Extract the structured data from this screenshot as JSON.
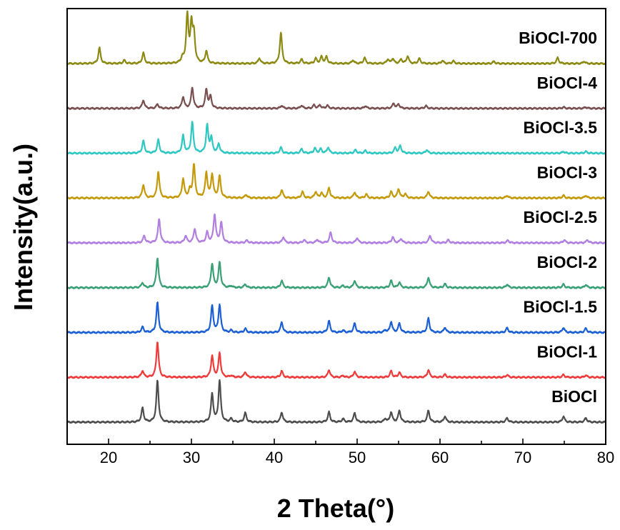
{
  "chart_data": {
    "type": "line",
    "xlabel": "2 Theta(°)",
    "ylabel": "Intensity(a.u.)",
    "xlim": [
      15,
      80
    ],
    "xticks": [
      20,
      30,
      40,
      50,
      60,
      70,
      80
    ],
    "grid": false,
    "legend": "inline labels right of each trace",
    "series": [
      {
        "name": "BiOCl",
        "color": "#4d4d4d",
        "baseline_level": 0,
        "peaks": [
          [
            24.1,
            0.34
          ],
          [
            25.9,
            1.0
          ],
          [
            32.5,
            0.68
          ],
          [
            33.4,
            1.0
          ],
          [
            34.8,
            0.08
          ],
          [
            36.5,
            0.22
          ],
          [
            40.9,
            0.24
          ],
          [
            46.6,
            0.24
          ],
          [
            48.3,
            0.08
          ],
          [
            49.7,
            0.22
          ],
          [
            53.4,
            0.08
          ],
          [
            54.1,
            0.24
          ],
          [
            55.1,
            0.28
          ],
          [
            58.6,
            0.28
          ],
          [
            60.6,
            0.14
          ],
          [
            68.1,
            0.1
          ],
          [
            74.9,
            0.14
          ],
          [
            77.6,
            0.1
          ]
        ]
      },
      {
        "name": "BiOCl-1",
        "color": "#ee3b3b",
        "baseline_level": 1,
        "peaks": [
          [
            24.1,
            0.16
          ],
          [
            25.9,
            0.86
          ],
          [
            32.5,
            0.52
          ],
          [
            33.4,
            0.58
          ],
          [
            34.8,
            0.04
          ],
          [
            36.5,
            0.13
          ],
          [
            40.9,
            0.15
          ],
          [
            46.6,
            0.18
          ],
          [
            48.3,
            0.04
          ],
          [
            49.7,
            0.14
          ],
          [
            54.1,
            0.15
          ],
          [
            55.1,
            0.12
          ],
          [
            58.6,
            0.18
          ],
          [
            60.6,
            0.07
          ],
          [
            68.1,
            0.06
          ],
          [
            74.9,
            0.06
          ],
          [
            77.6,
            0.05
          ]
        ]
      },
      {
        "name": "BiOCl-1.5",
        "color": "#1b5fd4",
        "baseline_level": 2,
        "peaks": [
          [
            24.1,
            0.13
          ],
          [
            25.9,
            0.72
          ],
          [
            32.5,
            0.64
          ],
          [
            33.4,
            0.66
          ],
          [
            34.8,
            0.05
          ],
          [
            36.5,
            0.09
          ],
          [
            40.9,
            0.25
          ],
          [
            46.6,
            0.28
          ],
          [
            48.3,
            0.05
          ],
          [
            49.7,
            0.22
          ],
          [
            53.4,
            0.05
          ],
          [
            54.1,
            0.26
          ],
          [
            55.1,
            0.22
          ],
          [
            58.6,
            0.34
          ],
          [
            60.6,
            0.12
          ],
          [
            68.1,
            0.11
          ],
          [
            74.9,
            0.12
          ],
          [
            77.6,
            0.1
          ]
        ]
      },
      {
        "name": "BiOCl-2",
        "color": "#3aa076",
        "baseline_level": 3,
        "peaks": [
          [
            24.1,
            0.12
          ],
          [
            25.9,
            0.72
          ],
          [
            32.5,
            0.58
          ],
          [
            33.4,
            0.6
          ],
          [
            34.8,
            0.04
          ],
          [
            36.5,
            0.08
          ],
          [
            40.9,
            0.17
          ],
          [
            46.6,
            0.25
          ],
          [
            48.3,
            0.05
          ],
          [
            49.7,
            0.17
          ],
          [
            54.1,
            0.17
          ],
          [
            55.1,
            0.13
          ],
          [
            58.6,
            0.25
          ],
          [
            60.6,
            0.09
          ],
          [
            68.1,
            0.08
          ],
          [
            74.9,
            0.08
          ],
          [
            77.6,
            0.07
          ]
        ]
      },
      {
        "name": "BiOCl-2.5",
        "color": "#b17fe0",
        "baseline_level": 4,
        "peaks": [
          [
            24.3,
            0.17
          ],
          [
            26.1,
            0.58
          ],
          [
            29.3,
            0.17
          ],
          [
            30.4,
            0.34
          ],
          [
            31.9,
            0.25
          ],
          [
            32.8,
            0.68
          ],
          [
            33.6,
            0.48
          ],
          [
            36.7,
            0.06
          ],
          [
            41.1,
            0.14
          ],
          [
            43.6,
            0.07
          ],
          [
            45.2,
            0.08
          ],
          [
            46.8,
            0.25
          ],
          [
            50.0,
            0.12
          ],
          [
            54.3,
            0.14
          ],
          [
            55.3,
            0.1
          ],
          [
            58.8,
            0.18
          ],
          [
            61.0,
            0.07
          ],
          [
            68.2,
            0.06
          ],
          [
            75.0,
            0.07
          ],
          [
            77.8,
            0.07
          ]
        ]
      },
      {
        "name": "BiOCl-3",
        "color": "#c49a0a",
        "baseline_level": 5,
        "peaks": [
          [
            24.2,
            0.32
          ],
          [
            26.0,
            0.64
          ],
          [
            29.0,
            0.46
          ],
          [
            29.8,
            0.18
          ],
          [
            30.3,
            0.8
          ],
          [
            31.8,
            0.6
          ],
          [
            32.5,
            0.56
          ],
          [
            33.4,
            0.52
          ],
          [
            36.6,
            0.08
          ],
          [
            40.9,
            0.2
          ],
          [
            43.4,
            0.15
          ],
          [
            45.0,
            0.15
          ],
          [
            45.7,
            0.12
          ],
          [
            46.6,
            0.24
          ],
          [
            49.7,
            0.14
          ],
          [
            51.1,
            0.09
          ],
          [
            54.1,
            0.15
          ],
          [
            55.0,
            0.22
          ],
          [
            55.8,
            0.1
          ],
          [
            58.6,
            0.16
          ],
          [
            68.1,
            0.06
          ],
          [
            74.9,
            0.06
          ],
          [
            77.6,
            0.06
          ]
        ]
      },
      {
        "name": "BiOCl-3.5",
        "color": "#2ec7c2",
        "baseline_level": 6,
        "peaks": [
          [
            24.2,
            0.3
          ],
          [
            26.0,
            0.32
          ],
          [
            29.0,
            0.42
          ],
          [
            30.1,
            0.74
          ],
          [
            31.9,
            0.66
          ],
          [
            32.4,
            0.36
          ],
          [
            33.3,
            0.22
          ],
          [
            40.8,
            0.14
          ],
          [
            43.3,
            0.1
          ],
          [
            44.9,
            0.12
          ],
          [
            45.6,
            0.1
          ],
          [
            46.5,
            0.14
          ],
          [
            49.8,
            0.08
          ],
          [
            51.0,
            0.06
          ],
          [
            54.6,
            0.13
          ],
          [
            55.2,
            0.18
          ],
          [
            58.4,
            0.08
          ],
          [
            74.9,
            0.04
          ],
          [
            77.6,
            0.04
          ]
        ]
      },
      {
        "name": "BiOCl-4",
        "color": "#7a4f4f",
        "baseline_level": 7,
        "peaks": [
          [
            24.2,
            0.2
          ],
          [
            25.9,
            0.1
          ],
          [
            29.0,
            0.28
          ],
          [
            30.1,
            0.5
          ],
          [
            31.8,
            0.45
          ],
          [
            32.3,
            0.28
          ],
          [
            40.9,
            0.07
          ],
          [
            43.3,
            0.07
          ],
          [
            44.8,
            0.08
          ],
          [
            45.5,
            0.08
          ],
          [
            46.4,
            0.07
          ],
          [
            51.0,
            0.06
          ],
          [
            54.4,
            0.12
          ],
          [
            55.0,
            0.1
          ],
          [
            58.3,
            0.06
          ],
          [
            74.9,
            0.03
          ],
          [
            77.6,
            0.03
          ]
        ]
      },
      {
        "name": "BiOCl-700",
        "color": "#8c8a12",
        "baseline_level": 8,
        "peaks": [
          [
            18.9,
            0.38
          ],
          [
            21.9,
            0.08
          ],
          [
            24.2,
            0.26
          ],
          [
            28.9,
            0.12
          ],
          [
            29.5,
            1.15
          ],
          [
            30.0,
            0.9
          ],
          [
            30.3,
            0.65
          ],
          [
            31.8,
            0.3
          ],
          [
            38.2,
            0.13
          ],
          [
            40.8,
            0.74
          ],
          [
            43.3,
            0.1
          ],
          [
            45.0,
            0.12
          ],
          [
            45.7,
            0.16
          ],
          [
            46.3,
            0.16
          ],
          [
            49.5,
            0.08
          ],
          [
            50.9,
            0.14
          ],
          [
            53.7,
            0.1
          ],
          [
            54.3,
            0.12
          ],
          [
            55.3,
            0.1
          ],
          [
            56.1,
            0.18
          ],
          [
            57.5,
            0.12
          ],
          [
            60.3,
            0.07
          ],
          [
            61.6,
            0.06
          ],
          [
            66.5,
            0.05
          ],
          [
            74.2,
            0.14
          ],
          [
            77.4,
            0.05
          ]
        ]
      }
    ]
  }
}
